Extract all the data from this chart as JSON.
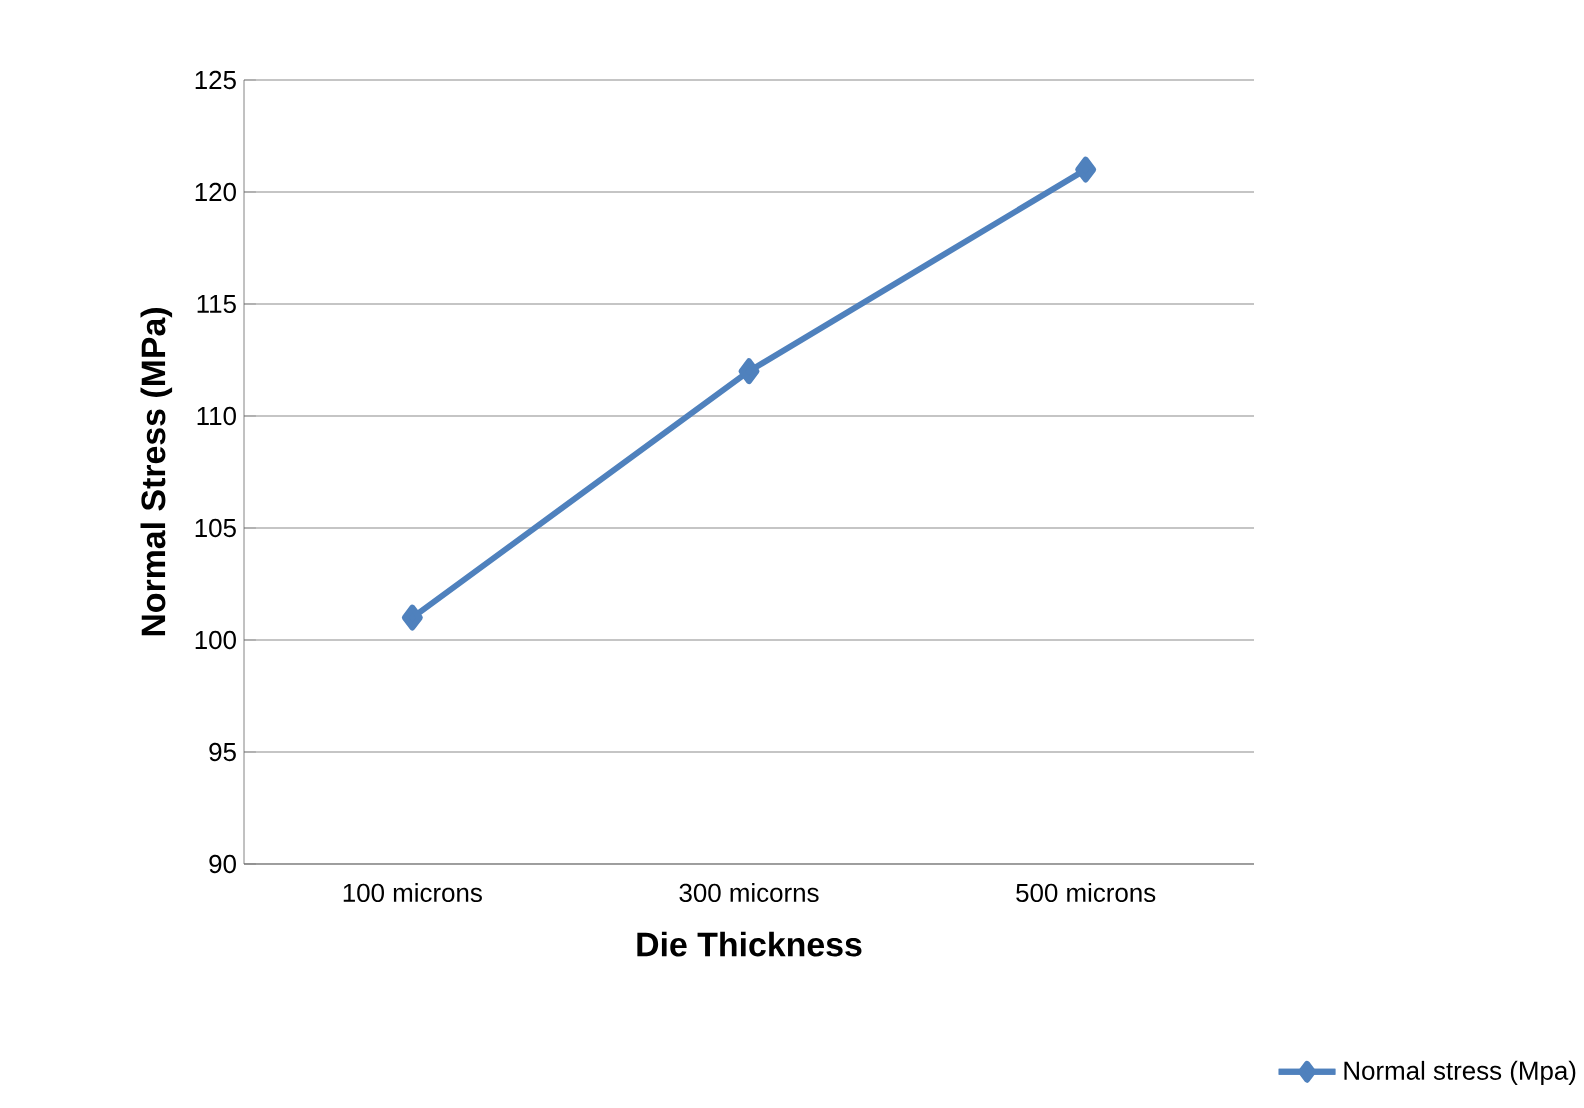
{
  "chart_data": {
    "type": "line",
    "xlabel": "Die Thickness",
    "ylabel": "Normal Stress (MPa)",
    "categories": [
      "100 microns",
      "300 micorns",
      "500 microns"
    ],
    "series": [
      {
        "name": "Normal stress (Mpa)",
        "color": "#4f81bd",
        "values": [
          101,
          112,
          121
        ]
      }
    ],
    "ylim": [
      90,
      125
    ],
    "yticks": [
      90,
      95,
      100,
      105,
      110,
      115,
      120,
      125
    ],
    "grid": "y",
    "legend": "bottom right",
    "marker": "diamond",
    "line_style": "solid"
  }
}
